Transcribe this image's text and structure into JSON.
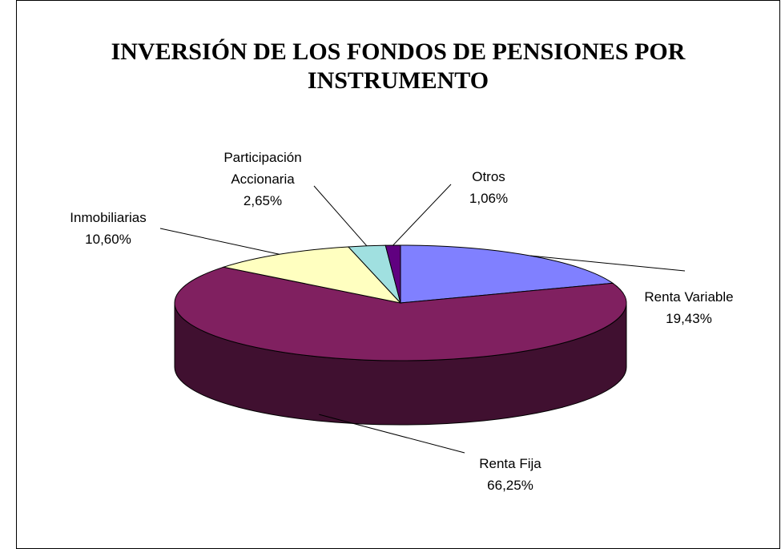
{
  "chart_data": {
    "type": "pie3d",
    "title": "INVERSIÓN DE LOS FONDOS DE PENSIONES POR INSTRUMENTO",
    "categories": [
      "Renta Variable",
      "Renta Fija",
      "Inmobiliarias",
      "Participación Accionaria",
      "Otros"
    ],
    "values": [
      19.43,
      66.25,
      10.6,
      2.65,
      1.06
    ],
    "value_labels": [
      "19,43%",
      "66,25%",
      "10,60%",
      "2,65%",
      "1,06%"
    ],
    "colors": [
      "#8080ff",
      "#802060",
      "#ffffc0",
      "#a0e0e0",
      "#600080"
    ]
  }
}
